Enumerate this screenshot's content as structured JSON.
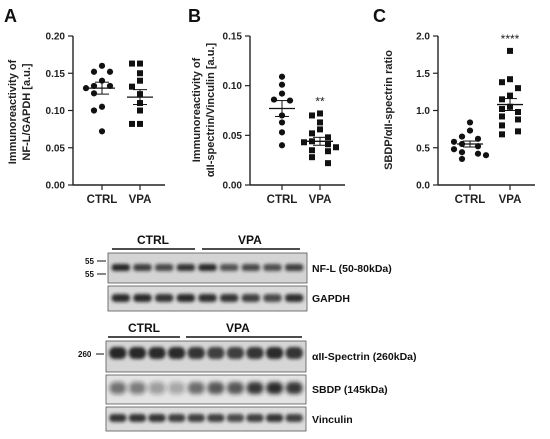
{
  "chart_data": [
    {
      "type": "scatter",
      "panel": "A",
      "ylabel_lines": [
        "Immunoreactivity of",
        "NF-L/GAPDH [a.u.]"
      ],
      "ylim": [
        0,
        0.2
      ],
      "yticks": [
        "0.00",
        "0.05",
        "0.10",
        "0.15",
        "0.20"
      ],
      "ytick_values": [
        0,
        0.05,
        0.1,
        0.15,
        0.2
      ],
      "categories": [
        "CTRL",
        "VPA"
      ],
      "series": [
        {
          "marker": "circle",
          "values": [
            0.16,
            0.152,
            0.152,
            0.14,
            0.133,
            0.133,
            0.13,
            0.123,
            0.105,
            0.1,
            0.072
          ],
          "mean": 0.13,
          "sem": 0.008
        },
        {
          "marker": "square",
          "values": [
            0.163,
            0.163,
            0.15,
            0.14,
            0.132,
            0.122,
            0.11,
            0.1,
            0.082,
            0.082
          ],
          "mean": 0.118,
          "sem": 0.01
        }
      ],
      "annotation": ""
    },
    {
      "type": "scatter",
      "panel": "B",
      "ylabel_lines": [
        "Immunoreactivity of",
        "αII-spectrin/Vinculin [a.u.]"
      ],
      "ylim": [
        0,
        0.15
      ],
      "yticks": [
        "0.00",
        "0.05",
        "0.10",
        "0.15"
      ],
      "ytick_values": [
        0,
        0.05,
        0.1,
        0.15
      ],
      "categories": [
        "CTRL",
        "VPA"
      ],
      "series": [
        {
          "marker": "circle",
          "values": [
            0.109,
            0.101,
            0.092,
            0.086,
            0.085,
            0.07,
            0.063,
            0.053,
            0.04
          ],
          "mean": 0.077,
          "sem": 0.008
        },
        {
          "marker": "square",
          "values": [
            0.072,
            0.07,
            0.063,
            0.056,
            0.052,
            0.048,
            0.044,
            0.043,
            0.041,
            0.038,
            0.035,
            0.034,
            0.028,
            0.022
          ],
          "mean": 0.044,
          "sem": 0.004
        }
      ],
      "annotation": "**"
    },
    {
      "type": "scatter",
      "panel": "C",
      "ylabel_lines": [
        "SBDP/αII-spectrin ratio"
      ],
      "ylim": [
        0,
        2.0
      ],
      "yticks": [
        "0.0",
        "0.5",
        "1.0",
        "1.5",
        "2.0"
      ],
      "ytick_values": [
        0,
        0.5,
        1.0,
        1.5,
        2.0
      ],
      "categories": [
        "CTRL",
        "VPA"
      ],
      "series": [
        {
          "marker": "circle",
          "values": [
            0.84,
            0.73,
            0.65,
            0.62,
            0.58,
            0.55,
            0.52,
            0.48,
            0.44,
            0.42,
            0.4,
            0.35
          ],
          "mean": 0.55,
          "sem": 0.04
        },
        {
          "marker": "square",
          "values": [
            1.8,
            1.42,
            1.38,
            1.3,
            1.2,
            1.15,
            1.05,
            1.02,
            0.98,
            0.92,
            0.88,
            0.8,
            0.72,
            0.68
          ],
          "mean": 1.08,
          "sem": 0.08
        }
      ],
      "annotation": "****"
    }
  ],
  "western": {
    "top": {
      "groups": [
        "CTRL",
        "VPA"
      ],
      "markers": [
        "55",
        "55"
      ],
      "rows": [
        {
          "label": "NF-L (50-80kDa)"
        },
        {
          "label": "GAPDH"
        }
      ]
    },
    "bottom": {
      "groups": [
        "CTRL",
        "VPA"
      ],
      "markers": [
        "260"
      ],
      "rows": [
        {
          "label": "αII-Spectrin (260kDa)"
        },
        {
          "label": "SBDP (145kDa)"
        },
        {
          "label": "Vinculin"
        }
      ]
    }
  }
}
